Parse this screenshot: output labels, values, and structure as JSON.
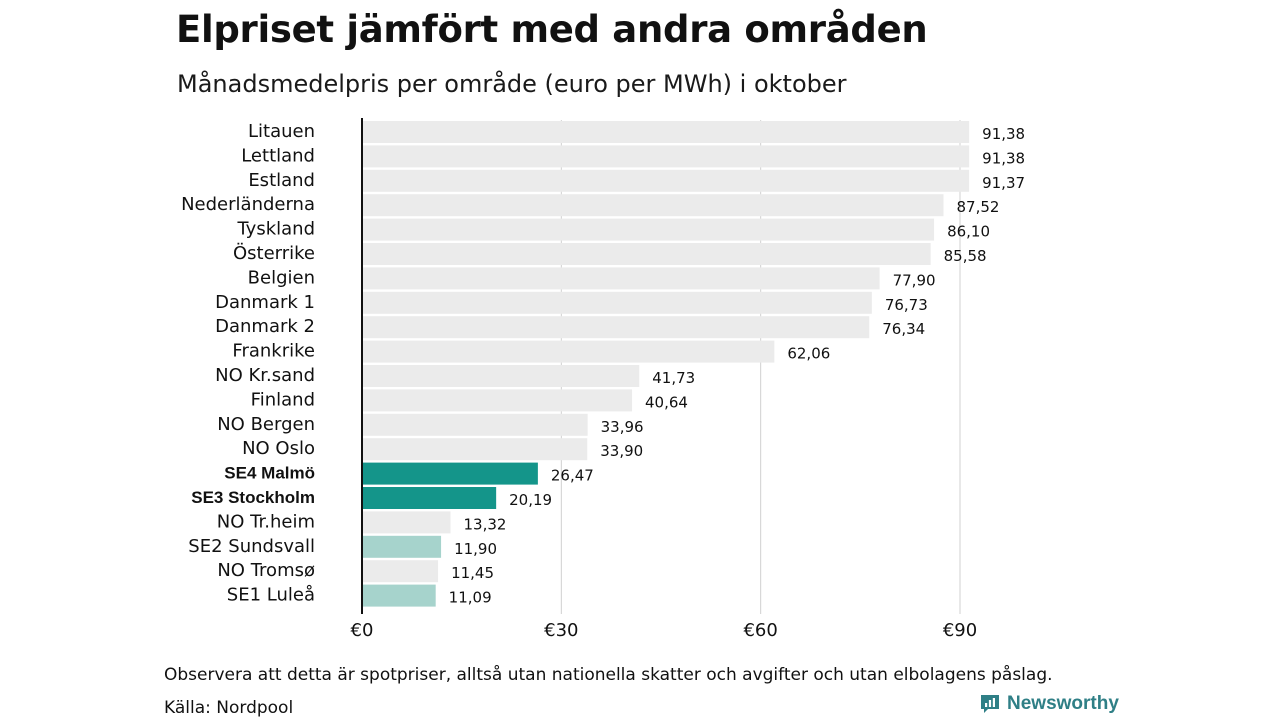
{
  "title": "Elpriset jämfört med andra områden",
  "subtitle": "Månadsmedelpris per område (euro per MWh) i oktober",
  "note": "Observera att detta är spotpriser, alltså utan nationella skatter och avgifter och utan elbolagens påslag.",
  "source": "Källa: Nordpool",
  "brand": {
    "name": "Newsworthy",
    "icon": "newsworthy-logo-icon"
  },
  "colors": {
    "default": "#ebebeb",
    "highlight_strong": "#14958a",
    "highlight_light": "#a6d3cc",
    "grid": "#d0d0d0",
    "axis": "#111111"
  },
  "chart_data": {
    "type": "bar",
    "orientation": "horizontal",
    "categories": [
      "Litauen",
      "Lettland",
      "Estland",
      "Nederländerna",
      "Tyskland",
      "Österrike",
      "Belgien",
      "Danmark 1",
      "Danmark 2",
      "Frankrike",
      "NO Kr.sand",
      "Finland",
      "NO Bergen",
      "NO Oslo",
      "SE4 Malmö",
      "SE3 Stockholm",
      "NO Tr.heim",
      "SE2 Sundsvall",
      "NO Tromsø",
      "SE1 Luleå"
    ],
    "values": [
      91.38,
      91.38,
      91.37,
      87.52,
      86.1,
      85.58,
      77.9,
      76.73,
      76.34,
      62.06,
      41.73,
      40.64,
      33.96,
      33.9,
      26.47,
      20.19,
      13.32,
      11.9,
      11.45,
      11.09
    ],
    "value_labels": [
      "91,38",
      "91,38",
      "91,37",
      "87,52",
      "86,10",
      "85,58",
      "77,90",
      "76,73",
      "76,34",
      "62,06",
      "41,73",
      "40,64",
      "33,96",
      "33,90",
      "26,47",
      "20,19",
      "13,32",
      "11,90",
      "11,45",
      "11,09"
    ],
    "highlight": [
      "none",
      "none",
      "none",
      "none",
      "none",
      "none",
      "none",
      "none",
      "none",
      "none",
      "none",
      "none",
      "none",
      "none",
      "strong",
      "strong",
      "none",
      "light",
      "none",
      "light"
    ],
    "bold_labels": [
      false,
      false,
      false,
      false,
      false,
      false,
      false,
      false,
      false,
      false,
      false,
      false,
      false,
      false,
      true,
      true,
      false,
      false,
      false,
      false
    ],
    "xlim": [
      0,
      90
    ],
    "xticks": [
      0,
      30,
      60,
      90
    ],
    "xtick_labels": [
      "€0",
      "€30",
      "€60",
      "€90"
    ],
    "grid": true,
    "legend": "none"
  }
}
